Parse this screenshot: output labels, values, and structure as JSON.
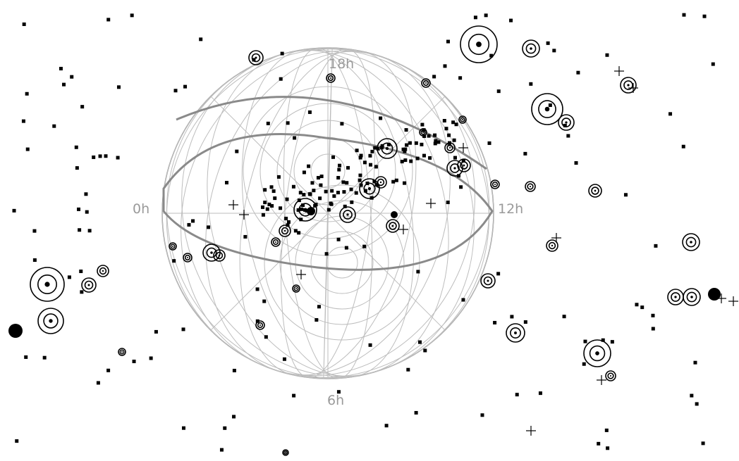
{
  "globe": {
    "hour_labels": {
      "top": "18h",
      "left": "0h",
      "right": "12h",
      "bottom": "6h"
    }
  },
  "colors": {
    "background": "#ffffff",
    "grid_line": "#bdbdbd",
    "outline": "#8c8c8c",
    "symbol": "#000000",
    "label": "#9a9a9a"
  },
  "symbol_types": [
    "filled-square-marker",
    "ringed-galaxy-symbol",
    "open-cluster-cross",
    "filled-dot-marker"
  ]
}
